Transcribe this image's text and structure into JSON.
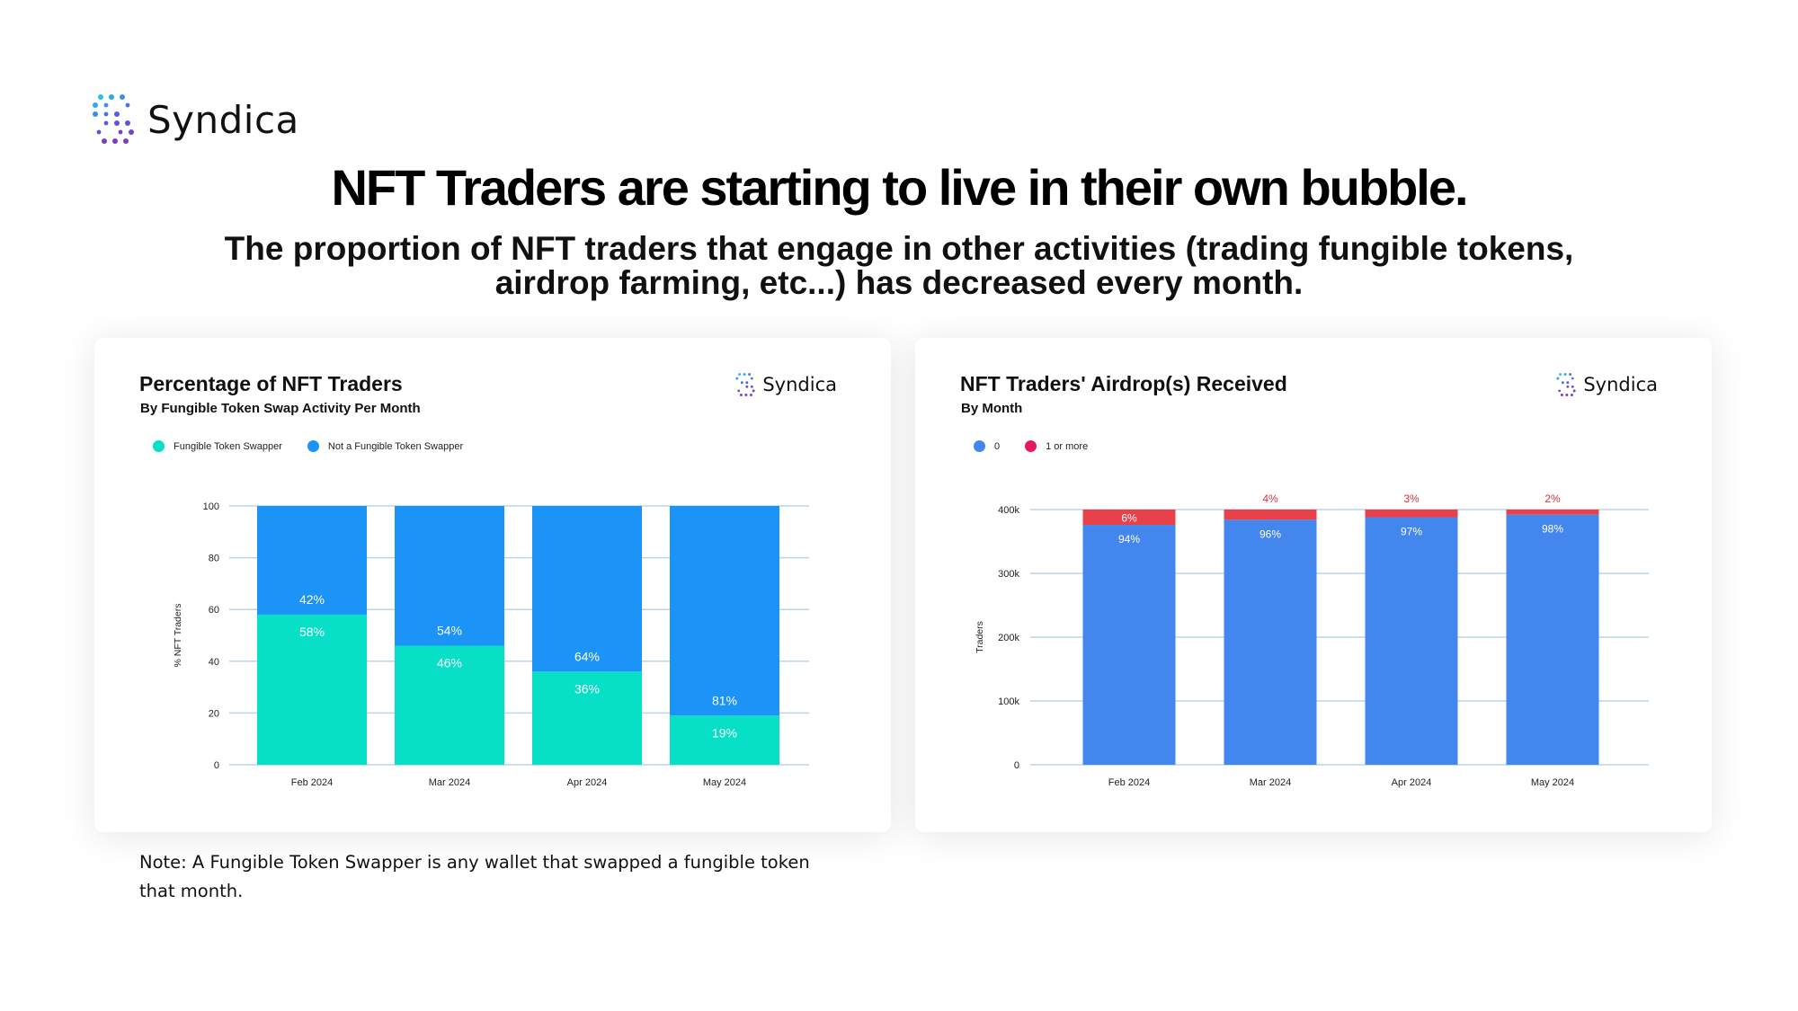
{
  "brand": {
    "name": "Syndica"
  },
  "headline": "NFT Traders are starting to live in their own bubble.",
  "subhead": "The proportion of NFT traders that engage in other activities (trading fungible tokens, airdrop farming, etc...) has decreased every month.",
  "note": "Note: A Fungible Token Swapper is any wallet that swapped a fungible token that month.",
  "colors": {
    "swapper": "#08DFC7",
    "not_swapper": "#1C93F6",
    "zero": "#4286EE",
    "one_or_more": "#E8414A",
    "one_or_more_legend": "#E41A5A",
    "grid": "#B9D6E8"
  },
  "chart_data": [
    {
      "type": "bar",
      "stacked": true,
      "title": "Percentage of NFT Traders",
      "subtitle": "By Fungible Token Swap Activity Per Month",
      "brand": "Syndica",
      "categories": [
        "Feb 2024",
        "Mar 2024",
        "Apr 2024",
        "May 2024"
      ],
      "series": [
        {
          "name": "Fungible Token Swapper",
          "values": [
            58,
            46,
            36,
            19
          ],
          "labels": [
            "58%",
            "46%",
            "36%",
            "19%"
          ]
        },
        {
          "name": "Not a Fungible Token Swapper",
          "values": [
            42,
            54,
            64,
            81
          ],
          "labels": [
            "42%",
            "54%",
            "64%",
            "81%"
          ]
        }
      ],
      "xlabel": "",
      "ylabel": "% NFT Traders",
      "ylim": [
        0,
        100
      ],
      "yticks": [
        0,
        20,
        40,
        60,
        80,
        100
      ],
      "ytick_labels": [
        "0",
        "20",
        "40",
        "60",
        "80",
        "100"
      ],
      "legend": "top-left",
      "grid": true
    },
    {
      "type": "bar",
      "stacked": true,
      "title": "NFT Traders' Airdrop(s) Received",
      "subtitle": "By Month",
      "brand": "Syndica",
      "categories": [
        "Feb 2024",
        "Mar 2024",
        "Apr 2024",
        "May 2024"
      ],
      "series": [
        {
          "name": "0",
          "values": [
            376000,
            384000,
            388000,
            392000
          ],
          "labels": [
            "94%",
            "96%",
            "97%",
            "98%"
          ]
        },
        {
          "name": "1 or more",
          "values": [
            24000,
            16000,
            12000,
            8000
          ],
          "labels": [
            "6%",
            "4%",
            "3%",
            "2%"
          ]
        }
      ],
      "xlabel": "",
      "ylabel": "Traders",
      "ylim": [
        0,
        400000
      ],
      "yticks": [
        0,
        100000,
        200000,
        300000,
        400000
      ],
      "ytick_labels": [
        "0",
        "100k",
        "200k",
        "300k",
        "400k"
      ],
      "legend": "top-left",
      "grid": true
    }
  ]
}
